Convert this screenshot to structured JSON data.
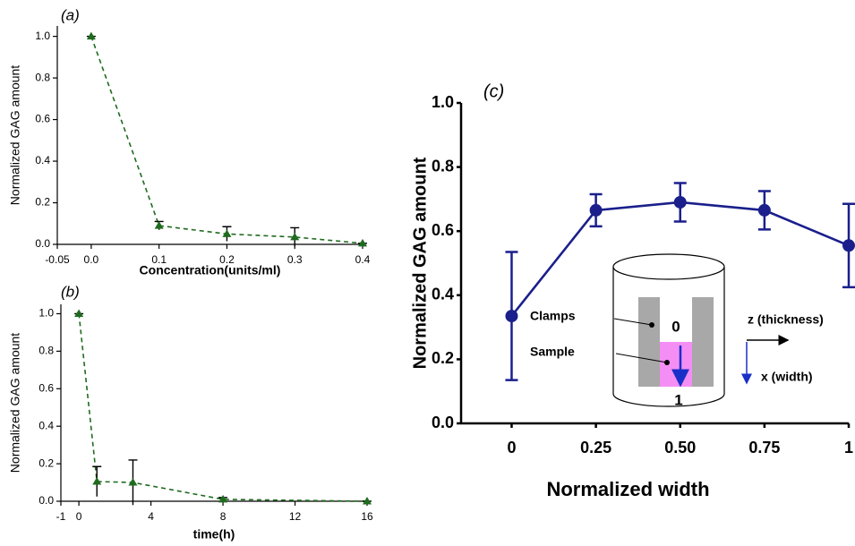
{
  "chart_data": [
    {
      "type": "line",
      "title": "(a)",
      "y_label": "Normalized GAG amount",
      "x_label": "Concentration(units/ml)",
      "x": [
        0,
        0.1,
        0.2,
        0.3,
        0.4
      ],
      "values": [
        1.0,
        0.09,
        0.05,
        0.035,
        0.005
      ],
      "errors": [
        0,
        0.02,
        0.035,
        0.045,
        0
      ],
      "color": "#1f6b1f",
      "marker": "triangle",
      "line_style": "dashed",
      "xlim": [
        -0.05,
        0.4
      ],
      "xticks": [
        -0.05,
        {
          "value": 0,
          "label": "0.0"
        },
        0.1,
        0.2,
        0.3,
        0.4
      ],
      "ylim": [
        0,
        1.05
      ],
      "yticks": [
        {
          "value": 0,
          "label": "0.0"
        },
        0.2,
        0.4,
        0.6,
        0.8,
        {
          "value": 1,
          "label": "1.0"
        }
      ]
    },
    {
      "type": "line",
      "title": "(b)",
      "y_label": "Normalized GAG amount",
      "x_label": "time(h)",
      "x": [
        0,
        1,
        3,
        8,
        16
      ],
      "values": [
        1.0,
        0.105,
        0.1,
        0.01,
        0.0
      ],
      "errors": [
        0,
        0.08,
        0.12,
        0.01,
        0
      ],
      "color": "#1f6b1f",
      "marker": "triangle",
      "line_style": "dashed",
      "xlim": [
        -1,
        16
      ],
      "xticks": [
        -1,
        0,
        4,
        8,
        12,
        16
      ],
      "ylim": [
        0,
        1.05
      ],
      "yticks": [
        {
          "value": 0,
          "label": "0.0"
        },
        0.2,
        0.4,
        0.6,
        0.8,
        {
          "value": 1,
          "label": "1.0"
        }
      ]
    },
    {
      "type": "line",
      "title": "(c)",
      "y_label": "Normalized GAG amount",
      "x_label": "Normalized width",
      "x": [
        0,
        0.25,
        0.5,
        0.75,
        1
      ],
      "values": [
        0.335,
        0.665,
        0.69,
        0.665,
        0.555
      ],
      "errors": [
        0.2,
        0.05,
        0.06,
        0.06,
        0.13
      ],
      "color": "#1a1f8c",
      "marker": "circle",
      "line_style": "solid",
      "xlim": [
        -0.15,
        1
      ],
      "xticks": [
        0,
        0.25,
        {
          "value": 0.5,
          "label": "0.50"
        },
        0.75,
        1
      ],
      "ylim": [
        0,
        1
      ],
      "yticks": [
        {
          "value": 0,
          "label": "0.0"
        },
        0.2,
        0.4,
        0.6,
        0.8,
        {
          "value": 1,
          "label": "1.0"
        }
      ],
      "annotations": [
        "Clamps",
        "Sample",
        "0",
        "1",
        "z (thickness)",
        "x (width)"
      ]
    }
  ]
}
